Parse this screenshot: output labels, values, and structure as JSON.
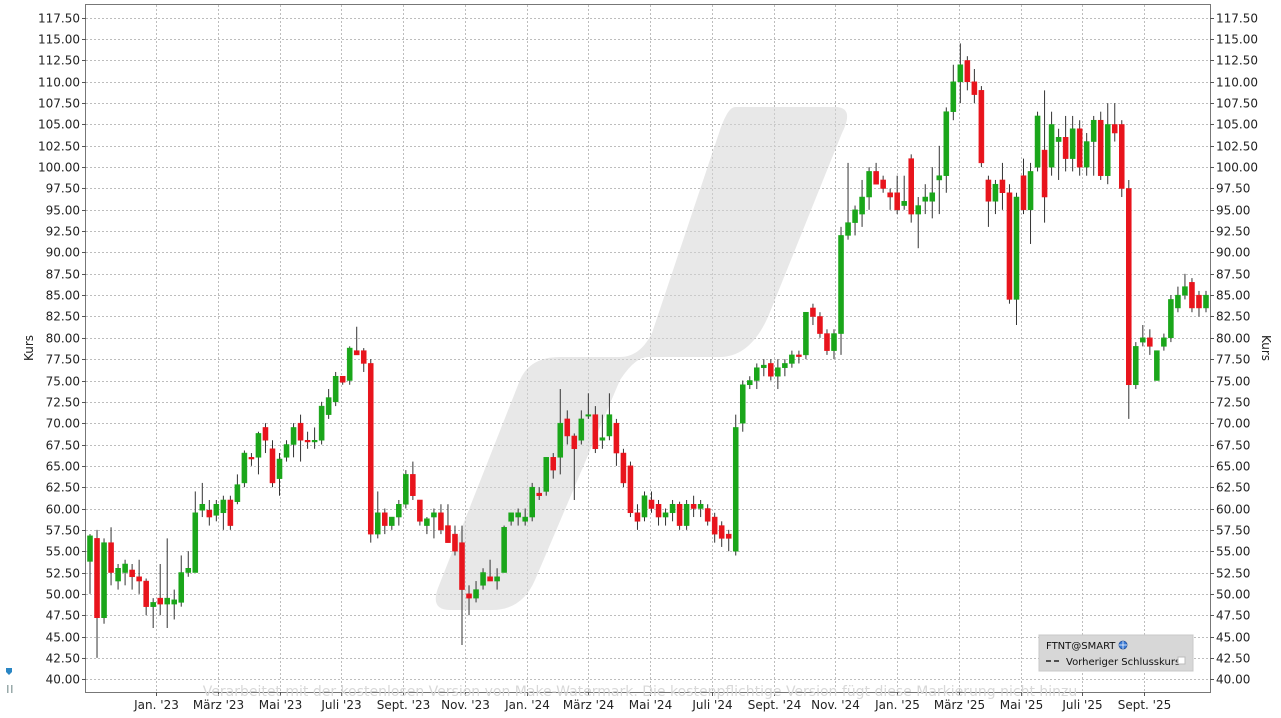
{
  "chart_data": {
    "type": "candlestick",
    "y_axis_title_left": "Kurs",
    "y_axis_title_right": "Kurs",
    "ylim": [
      38.5,
      119
    ],
    "y_ticks": [
      "40.00",
      "42.50",
      "45.00",
      "47.50",
      "50.00",
      "52.50",
      "55.00",
      "57.50",
      "60.00",
      "62.50",
      "65.00",
      "67.50",
      "70.00",
      "72.50",
      "75.00",
      "77.50",
      "80.00",
      "82.50",
      "85.00",
      "87.50",
      "90.00",
      "92.50",
      "95.00",
      "97.50",
      "100.00",
      "102.50",
      "105.00",
      "107.50",
      "110.00",
      "112.50",
      "115.00",
      "117.50"
    ],
    "x_ticks": [
      "Jan. '23",
      "März '23",
      "Mai '23",
      "Juli '23",
      "Sept. '23",
      "Nov. '23",
      "Jan. '24",
      "März '24",
      "Mai '24",
      "Juli '24",
      "Sept. '24",
      "Nov. '24",
      "Jan. '25",
      "März '25",
      "Mai '25",
      "Juli '25",
      "Sept. '25"
    ],
    "grid": true,
    "legend": {
      "placement": "bottom-right",
      "symbol": "FTNT@SMART",
      "previous_close_label": "Vorheriger Schlusskurs"
    },
    "watermark": "Verarbeitet mit der kostenlosen Version von Make-Watermark. Die kostenpflichtige Version fügt diese Markierung nicht hinzu",
    "colors": {
      "up": "#1aa61a",
      "down": "#e8141c",
      "grid": "#bdbdbd"
    },
    "candles": [
      {
        "o": 53.8,
        "h": 57.0,
        "l": 50.0,
        "c": 56.8
      },
      {
        "o": 56.5,
        "h": 57.5,
        "l": 42.5,
        "c": 47.2
      },
      {
        "o": 47.2,
        "h": 56.5,
        "l": 46.5,
        "c": 56.0
      },
      {
        "o": 56.0,
        "h": 57.8,
        "l": 51.0,
        "c": 52.5
      },
      {
        "o": 51.5,
        "h": 53.5,
        "l": 50.5,
        "c": 53.0
      },
      {
        "o": 52.5,
        "h": 54.0,
        "l": 51.0,
        "c": 53.5
      },
      {
        "o": 52.8,
        "h": 53.5,
        "l": 50.5,
        "c": 52.0
      },
      {
        "o": 52.0,
        "h": 54.0,
        "l": 50.0,
        "c": 51.5
      },
      {
        "o": 51.5,
        "h": 51.8,
        "l": 47.5,
        "c": 48.5
      },
      {
        "o": 48.5,
        "h": 49.5,
        "l": 46.0,
        "c": 49.0
      },
      {
        "o": 49.5,
        "h": 53.5,
        "l": 47.5,
        "c": 48.8
      },
      {
        "o": 48.8,
        "h": 56.5,
        "l": 46.0,
        "c": 49.5
      },
      {
        "o": 48.8,
        "h": 50.5,
        "l": 47.0,
        "c": 49.3
      },
      {
        "o": 49.0,
        "h": 54.5,
        "l": 48.5,
        "c": 52.5
      },
      {
        "o": 52.5,
        "h": 55.0,
        "l": 52.0,
        "c": 53.0
      },
      {
        "o": 52.5,
        "h": 62.0,
        "l": 52.5,
        "c": 59.5
      },
      {
        "o": 59.8,
        "h": 63.0,
        "l": 59.0,
        "c": 60.5
      },
      {
        "o": 59.8,
        "h": 61.0,
        "l": 58.0,
        "c": 59.0
      },
      {
        "o": 59.2,
        "h": 61.0,
        "l": 58.5,
        "c": 60.5
      },
      {
        "o": 59.5,
        "h": 61.5,
        "l": 57.5,
        "c": 61.0
      },
      {
        "o": 61.0,
        "h": 61.5,
        "l": 57.5,
        "c": 58.0
      },
      {
        "o": 60.8,
        "h": 64.0,
        "l": 60.5,
        "c": 62.8
      },
      {
        "o": 63.0,
        "h": 66.8,
        "l": 62.5,
        "c": 66.5
      },
      {
        "o": 66.0,
        "h": 66.5,
        "l": 65.0,
        "c": 65.8
      },
      {
        "o": 66.0,
        "h": 69.0,
        "l": 64.0,
        "c": 68.8
      },
      {
        "o": 69.5,
        "h": 70.0,
        "l": 66.5,
        "c": 68.0
      },
      {
        "o": 67.0,
        "h": 68.0,
        "l": 62.5,
        "c": 63.0
      },
      {
        "o": 63.5,
        "h": 66.5,
        "l": 61.5,
        "c": 65.8
      },
      {
        "o": 66.0,
        "h": 68.0,
        "l": 65.5,
        "c": 67.5
      },
      {
        "o": 67.5,
        "h": 70.0,
        "l": 66.0,
        "c": 69.5
      },
      {
        "o": 70.0,
        "h": 71.0,
        "l": 65.5,
        "c": 68.0
      },
      {
        "o": 68.0,
        "h": 69.0,
        "l": 67.0,
        "c": 67.8
      },
      {
        "o": 67.8,
        "h": 69.5,
        "l": 67.0,
        "c": 68.0
      },
      {
        "o": 68.0,
        "h": 72.5,
        "l": 67.5,
        "c": 72.0
      },
      {
        "o": 71.0,
        "h": 74.0,
        "l": 70.5,
        "c": 73.0
      },
      {
        "o": 72.5,
        "h": 76.0,
        "l": 72.0,
        "c": 75.5
      },
      {
        "o": 75.5,
        "h": 75.5,
        "l": 74.5,
        "c": 74.8
      },
      {
        "o": 75.0,
        "h": 79.0,
        "l": 74.5,
        "c": 78.8
      },
      {
        "o": 78.5,
        "h": 81.3,
        "l": 78.0,
        "c": 78.0
      },
      {
        "o": 78.5,
        "h": 78.8,
        "l": 76.0,
        "c": 77.0
      },
      {
        "o": 77.0,
        "h": 77.5,
        "l": 56.0,
        "c": 57.0
      },
      {
        "o": 57.0,
        "h": 62.0,
        "l": 56.5,
        "c": 59.5
      },
      {
        "o": 59.5,
        "h": 60.0,
        "l": 57.0,
        "c": 58.0
      },
      {
        "o": 58.0,
        "h": 59.0,
        "l": 57.5,
        "c": 59.0
      },
      {
        "o": 59.0,
        "h": 61.0,
        "l": 58.0,
        "c": 60.5
      },
      {
        "o": 60.5,
        "h": 64.5,
        "l": 60.0,
        "c": 64.0
      },
      {
        "o": 64.0,
        "h": 65.5,
        "l": 61.0,
        "c": 61.5
      },
      {
        "o": 61.0,
        "h": 61.0,
        "l": 58.0,
        "c": 58.5
      },
      {
        "o": 58.0,
        "h": 59.0,
        "l": 57.0,
        "c": 58.8
      },
      {
        "o": 59.0,
        "h": 60.0,
        "l": 56.5,
        "c": 59.5
      },
      {
        "o": 59.5,
        "h": 60.5,
        "l": 57.0,
        "c": 57.5
      },
      {
        "o": 58.0,
        "h": 60.5,
        "l": 56.0,
        "c": 56.0
      },
      {
        "o": 57.0,
        "h": 58.0,
        "l": 54.5,
        "c": 55.0
      },
      {
        "o": 56.0,
        "h": 58.0,
        "l": 44.0,
        "c": 50.5
      },
      {
        "o": 50.0,
        "h": 51.0,
        "l": 47.5,
        "c": 49.5
      },
      {
        "o": 49.5,
        "h": 51.5,
        "l": 49.0,
        "c": 50.5
      },
      {
        "o": 51.0,
        "h": 53.0,
        "l": 50.5,
        "c": 52.5
      },
      {
        "o": 52.0,
        "h": 54.0,
        "l": 51.5,
        "c": 51.5
      },
      {
        "o": 51.5,
        "h": 53.0,
        "l": 50.5,
        "c": 52.0
      },
      {
        "o": 52.5,
        "h": 58.0,
        "l": 52.5,
        "c": 57.8
      },
      {
        "o": 58.5,
        "h": 59.5,
        "l": 58.0,
        "c": 59.5
      },
      {
        "o": 59.0,
        "h": 60.0,
        "l": 58.0,
        "c": 59.5
      },
      {
        "o": 58.5,
        "h": 60.0,
        "l": 58.0,
        "c": 59.0
      },
      {
        "o": 59.0,
        "h": 63.0,
        "l": 58.5,
        "c": 62.5
      },
      {
        "o": 61.8,
        "h": 62.5,
        "l": 61.0,
        "c": 61.5
      },
      {
        "o": 62.0,
        "h": 66.0,
        "l": 61.5,
        "c": 66.0
      },
      {
        "o": 66.0,
        "h": 66.5,
        "l": 63.5,
        "c": 64.5
      },
      {
        "o": 66.0,
        "h": 74.0,
        "l": 64.0,
        "c": 70.0
      },
      {
        "o": 70.5,
        "h": 71.5,
        "l": 67.5,
        "c": 68.5
      },
      {
        "o": 68.5,
        "h": 68.8,
        "l": 61.0,
        "c": 67.0
      },
      {
        "o": 68.0,
        "h": 71.5,
        "l": 67.5,
        "c": 70.5
      },
      {
        "o": 71.0,
        "h": 73.5,
        "l": 70.5,
        "c": 71.0
      },
      {
        "o": 71.0,
        "h": 72.0,
        "l": 66.5,
        "c": 67.0
      },
      {
        "o": 68.0,
        "h": 71.0,
        "l": 67.0,
        "c": 68.3
      },
      {
        "o": 68.5,
        "h": 73.5,
        "l": 68.0,
        "c": 71.0
      },
      {
        "o": 70.0,
        "h": 70.5,
        "l": 65.0,
        "c": 66.5
      },
      {
        "o": 66.5,
        "h": 67.0,
        "l": 62.5,
        "c": 63.0
      },
      {
        "o": 65.0,
        "h": 65.5,
        "l": 59.0,
        "c": 59.5
      },
      {
        "o": 59.5,
        "h": 60.5,
        "l": 57.5,
        "c": 58.5
      },
      {
        "o": 59.0,
        "h": 62.0,
        "l": 58.5,
        "c": 61.5
      },
      {
        "o": 61.0,
        "h": 62.0,
        "l": 59.5,
        "c": 60.0
      },
      {
        "o": 60.5,
        "h": 61.0,
        "l": 58.0,
        "c": 59.0
      },
      {
        "o": 59.0,
        "h": 60.0,
        "l": 58.0,
        "c": 59.5
      },
      {
        "o": 59.5,
        "h": 61.0,
        "l": 58.5,
        "c": 60.5
      },
      {
        "o": 60.5,
        "h": 60.8,
        "l": 57.5,
        "c": 58.0
      },
      {
        "o": 58.0,
        "h": 61.0,
        "l": 57.5,
        "c": 60.5
      },
      {
        "o": 60.5,
        "h": 61.5,
        "l": 59.0,
        "c": 60.0
      },
      {
        "o": 60.0,
        "h": 61.0,
        "l": 59.0,
        "c": 60.5
      },
      {
        "o": 60.0,
        "h": 60.5,
        "l": 58.0,
        "c": 58.5
      },
      {
        "o": 59.0,
        "h": 59.5,
        "l": 56.0,
        "c": 57.0
      },
      {
        "o": 58.0,
        "h": 58.5,
        "l": 55.5,
        "c": 56.5
      },
      {
        "o": 57.0,
        "h": 57.5,
        "l": 55.0,
        "c": 56.5
      },
      {
        "o": 55.0,
        "h": 71.0,
        "l": 54.5,
        "c": 69.5
      },
      {
        "o": 70.0,
        "h": 75.0,
        "l": 69.0,
        "c": 74.5
      },
      {
        "o": 74.5,
        "h": 75.5,
        "l": 74.0,
        "c": 75.0
      },
      {
        "o": 75.0,
        "h": 77.0,
        "l": 74.0,
        "c": 76.5
      },
      {
        "o": 76.5,
        "h": 77.5,
        "l": 75.5,
        "c": 76.8
      },
      {
        "o": 77.0,
        "h": 77.5,
        "l": 75.0,
        "c": 75.5
      },
      {
        "o": 75.5,
        "h": 77.5,
        "l": 74.0,
        "c": 76.5
      },
      {
        "o": 76.5,
        "h": 77.5,
        "l": 75.5,
        "c": 77.0
      },
      {
        "o": 77.0,
        "h": 78.5,
        "l": 76.5,
        "c": 78.0
      },
      {
        "o": 78.0,
        "h": 78.5,
        "l": 77.0,
        "c": 77.8
      },
      {
        "o": 78.0,
        "h": 83.0,
        "l": 77.5,
        "c": 83.0
      },
      {
        "o": 83.5,
        "h": 84.0,
        "l": 81.5,
        "c": 82.5
      },
      {
        "o": 82.5,
        "h": 83.0,
        "l": 80.0,
        "c": 80.5
      },
      {
        "o": 80.5,
        "h": 81.0,
        "l": 78.0,
        "c": 78.5
      },
      {
        "o": 78.5,
        "h": 81.0,
        "l": 77.5,
        "c": 80.5
      },
      {
        "o": 80.5,
        "h": 93.0,
        "l": 78.0,
        "c": 92.0
      },
      {
        "o": 92.0,
        "h": 100.5,
        "l": 91.5,
        "c": 93.5
      },
      {
        "o": 93.5,
        "h": 95.5,
        "l": 92.0,
        "c": 95.0
      },
      {
        "o": 94.5,
        "h": 98.5,
        "l": 93.0,
        "c": 96.5
      },
      {
        "o": 96.5,
        "h": 100.0,
        "l": 95.0,
        "c": 99.5
      },
      {
        "o": 99.5,
        "h": 100.5,
        "l": 98.0,
        "c": 98.0
      },
      {
        "o": 98.5,
        "h": 99.0,
        "l": 97.0,
        "c": 97.5
      },
      {
        "o": 97.0,
        "h": 97.5,
        "l": 95.0,
        "c": 96.5
      },
      {
        "o": 97.0,
        "h": 99.0,
        "l": 94.5,
        "c": 95.0
      },
      {
        "o": 95.5,
        "h": 99.0,
        "l": 95.0,
        "c": 96.0
      },
      {
        "o": 101.0,
        "h": 101.5,
        "l": 93.5,
        "c": 94.5
      },
      {
        "o": 94.5,
        "h": 96.5,
        "l": 90.5,
        "c": 95.5
      },
      {
        "o": 96.0,
        "h": 98.0,
        "l": 94.5,
        "c": 96.5
      },
      {
        "o": 96.0,
        "h": 100.0,
        "l": 94.0,
        "c": 97.0
      },
      {
        "o": 98.5,
        "h": 102.5,
        "l": 94.5,
        "c": 99.0
      },
      {
        "o": 99.0,
        "h": 107.0,
        "l": 97.0,
        "c": 106.5
      },
      {
        "o": 106.5,
        "h": 112.0,
        "l": 105.5,
        "c": 110.0
      },
      {
        "o": 110.0,
        "h": 114.5,
        "l": 107.5,
        "c": 112.0
      },
      {
        "o": 112.5,
        "h": 113.0,
        "l": 109.0,
        "c": 110.0
      },
      {
        "o": 110.0,
        "h": 111.5,
        "l": 107.5,
        "c": 108.5
      },
      {
        "o": 109.0,
        "h": 109.5,
        "l": 100.0,
        "c": 100.5
      },
      {
        "o": 98.5,
        "h": 99.0,
        "l": 93.0,
        "c": 96.0
      },
      {
        "o": 96.0,
        "h": 98.5,
        "l": 94.5,
        "c": 98.0
      },
      {
        "o": 98.5,
        "h": 100.5,
        "l": 95.0,
        "c": 97.0
      },
      {
        "o": 97.0,
        "h": 98.0,
        "l": 84.0,
        "c": 84.5
      },
      {
        "o": 84.5,
        "h": 97.0,
        "l": 81.5,
        "c": 96.5
      },
      {
        "o": 99.0,
        "h": 101.0,
        "l": 94.5,
        "c": 95.0
      },
      {
        "o": 95.0,
        "h": 100.5,
        "l": 91.0,
        "c": 99.5
      },
      {
        "o": 100.0,
        "h": 106.5,
        "l": 99.5,
        "c": 106.0
      },
      {
        "o": 102.0,
        "h": 109.0,
        "l": 93.5,
        "c": 96.5
      },
      {
        "o": 100.0,
        "h": 106.5,
        "l": 99.0,
        "c": 105.0
      },
      {
        "o": 103.0,
        "h": 104.5,
        "l": 98.5,
        "c": 103.5
      },
      {
        "o": 103.5,
        "h": 106.0,
        "l": 99.5,
        "c": 101.0
      },
      {
        "o": 101.0,
        "h": 106.0,
        "l": 99.5,
        "c": 104.5
      },
      {
        "o": 104.5,
        "h": 105.5,
        "l": 99.0,
        "c": 100.0
      },
      {
        "o": 100.0,
        "h": 104.0,
        "l": 99.0,
        "c": 103.0
      },
      {
        "o": 103.0,
        "h": 106.0,
        "l": 99.0,
        "c": 105.5
      },
      {
        "o": 105.5,
        "h": 106.5,
        "l": 98.5,
        "c": 99.0
      },
      {
        "o": 99.0,
        "h": 107.5,
        "l": 98.0,
        "c": 105.0
      },
      {
        "o": 105.0,
        "h": 107.5,
        "l": 103.0,
        "c": 104.0
      },
      {
        "o": 105.0,
        "h": 105.5,
        "l": 96.5,
        "c": 97.5
      },
      {
        "o": 97.5,
        "h": 98.5,
        "l": 70.5,
        "c": 74.5
      },
      {
        "o": 74.5,
        "h": 79.5,
        "l": 74.0,
        "c": 79.0
      },
      {
        "o": 79.5,
        "h": 81.5,
        "l": 79.0,
        "c": 80.0
      },
      {
        "o": 80.0,
        "h": 81.0,
        "l": 78.0,
        "c": 79.0
      },
      {
        "o": 75.0,
        "h": 78.5,
        "l": 75.0,
        "c": 78.5
      },
      {
        "o": 79.0,
        "h": 80.5,
        "l": 78.5,
        "c": 80.0
      },
      {
        "o": 80.0,
        "h": 85.0,
        "l": 79.5,
        "c": 84.5
      },
      {
        "o": 83.5,
        "h": 86.0,
        "l": 83.0,
        "c": 85.0
      },
      {
        "o": 85.0,
        "h": 87.5,
        "l": 84.5,
        "c": 86.0
      },
      {
        "o": 86.5,
        "h": 87.0,
        "l": 83.0,
        "c": 83.5
      },
      {
        "o": 85.0,
        "h": 85.5,
        "l": 82.5,
        "c": 83.5
      },
      {
        "o": 83.5,
        "h": 85.5,
        "l": 83.0,
        "c": 85.0
      }
    ]
  }
}
